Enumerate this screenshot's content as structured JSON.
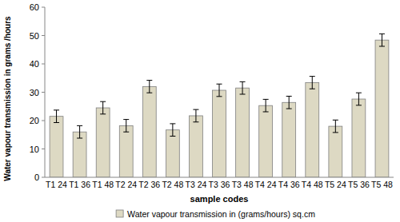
{
  "chart_data": {
    "type": "bar",
    "categories": [
      "T1 24",
      "T1 36",
      "T1 48",
      "T2 24",
      "T2 36",
      "T2 48",
      "T3 24",
      "T3 36",
      "T3 48",
      "T4 24",
      "T4 36",
      "T4 48",
      "T5 24",
      "T5 36",
      "T5 48"
    ],
    "values": [
      21.5,
      16,
      24.5,
      18.2,
      32,
      16.7,
      21.7,
      30.7,
      31.5,
      25.3,
      26.4,
      33.4,
      18,
      27.6,
      48.4
    ],
    "errors": [
      2.2,
      2.2,
      2.2,
      2.2,
      2.2,
      2.2,
      2.2,
      2.2,
      2.2,
      2.2,
      2.2,
      2.2,
      2.2,
      2.2,
      2.2
    ],
    "series_name": "Water vapour transmission in (grams/hours) sq.cm",
    "color": "#ddd9c3",
    "x_label": "sample codes",
    "y_label": "Water vapour transmission in grams /hours",
    "ylim": [
      0,
      60
    ],
    "yticks": [
      0,
      10,
      20,
      30,
      40,
      50,
      60
    ],
    "grid": false,
    "legend": "bottom"
  }
}
